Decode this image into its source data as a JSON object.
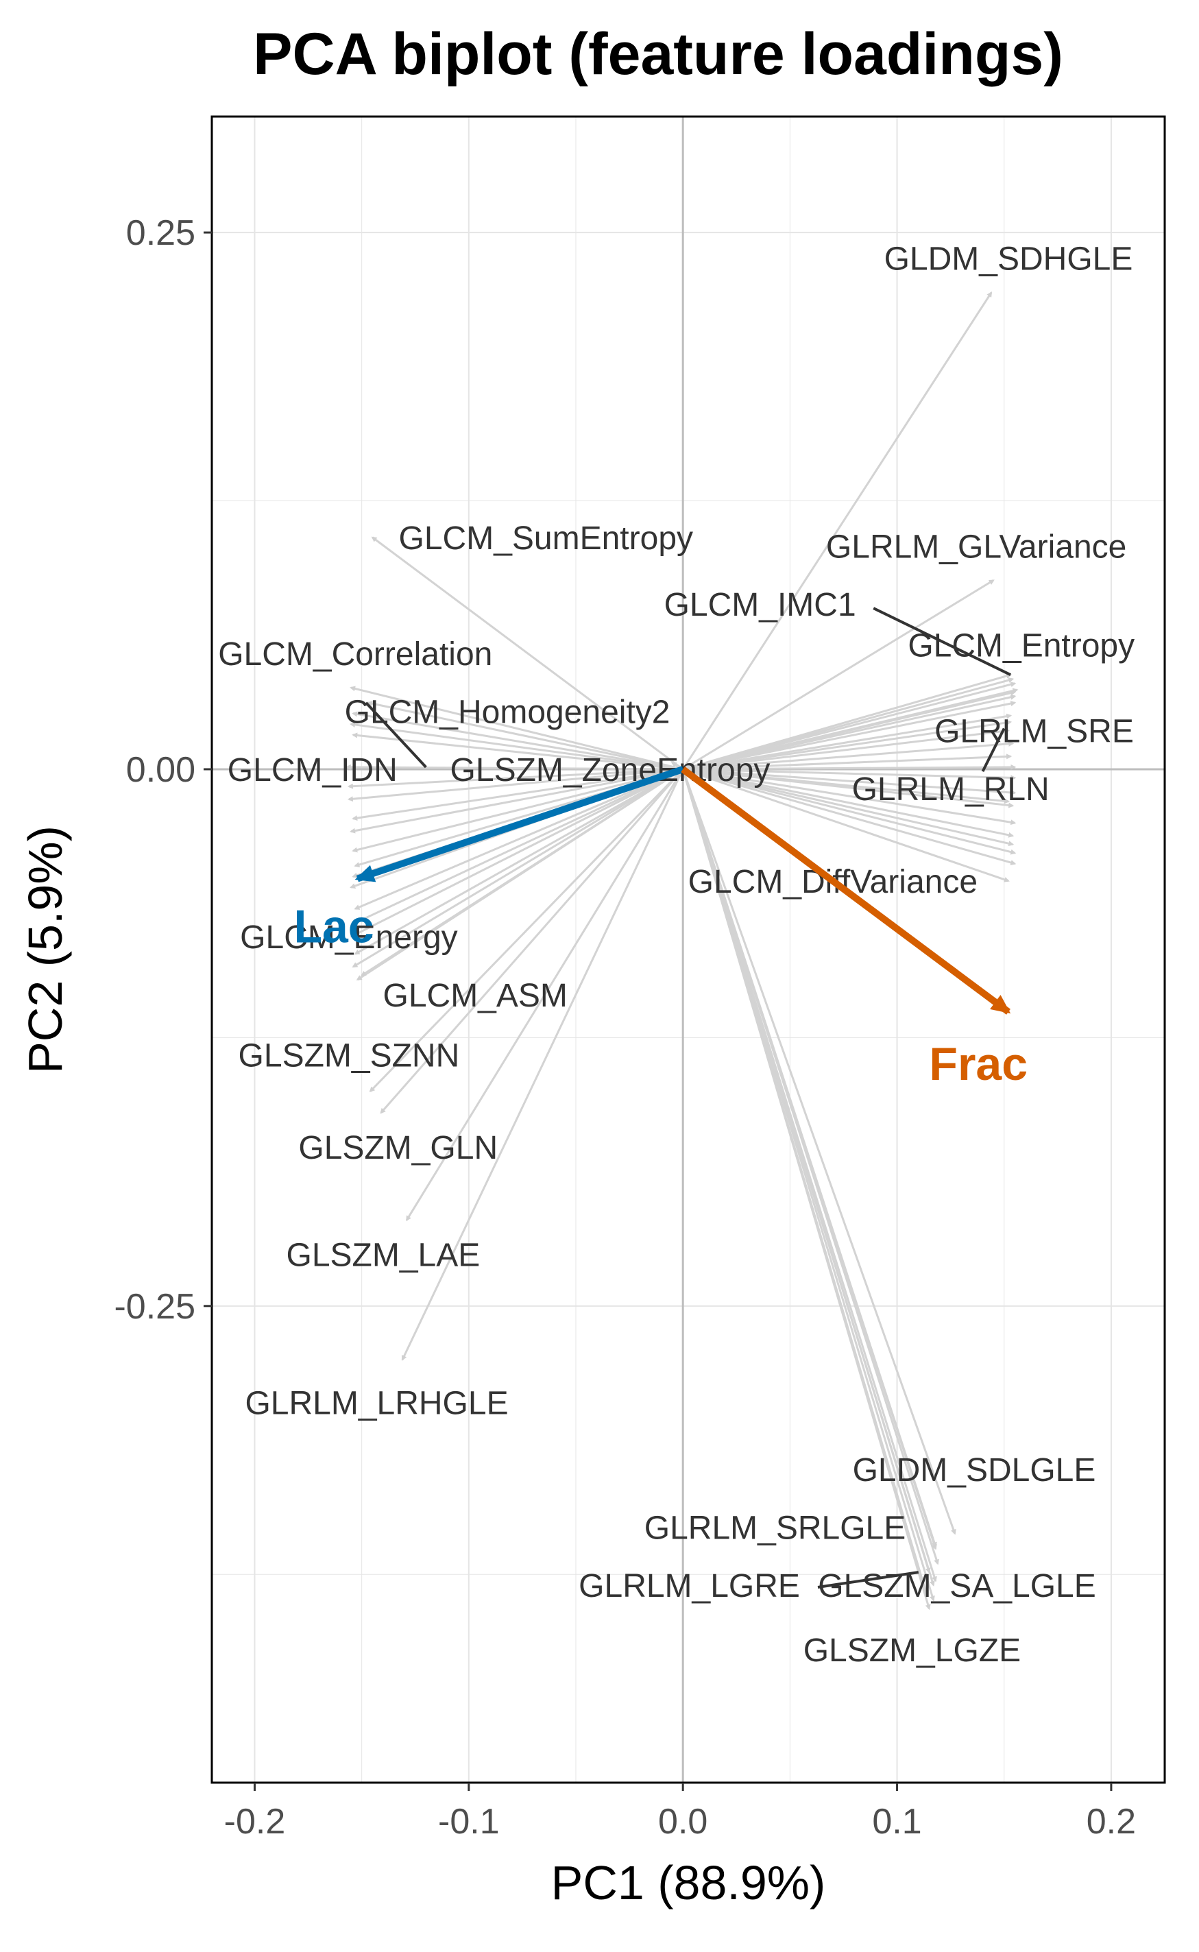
{
  "chart_data": {
    "type": "scatter",
    "subtype": "pca-biplot",
    "title": "PCA biplot (feature loadings)",
    "xlabel": "PC1 (88.9%)",
    "ylabel": "PC2 (5.9%)",
    "xlim": [
      -0.22,
      0.225
    ],
    "ylim": [
      -0.472,
      0.304
    ],
    "xticks": [
      -0.2,
      -0.1,
      0.0,
      0.1,
      0.2
    ],
    "xtick_labels": [
      "-0.2",
      "-0.1",
      "0.0",
      "0.1",
      "0.2"
    ],
    "yticks": [
      -0.25,
      0.0,
      0.25
    ],
    "ytick_labels": [
      "-0.25",
      "0.00",
      "0.25"
    ],
    "grid": true,
    "colors": {
      "arrow": "#d3d3d3",
      "leader": "#333333",
      "lac": "#0072B2",
      "frac": "#D55E00",
      "zero_line": "#bdbdbd",
      "grid": "#e5e5e5",
      "label": "#333333"
    },
    "labeled_features": [
      {
        "name": "GLDM_SDHGLE",
        "x": 0.144,
        "y": 0.222,
        "label_x": 0.152,
        "label_y": 0.238
      },
      {
        "name": "GLCM_SumEntropy",
        "x": -0.145,
        "y": 0.108,
        "label_x": -0.064,
        "label_y": 0.108
      },
      {
        "name": "GLRLM_GLVariance",
        "x": 0.145,
        "y": 0.088,
        "label_x": 0.137,
        "label_y": 0.104
      },
      {
        "name": "GLCM_IMC1",
        "x": 0.153,
        "y": 0.044,
        "label_x": 0.036,
        "label_y": 0.077
      },
      {
        "name": "GLCM_Correlation",
        "x": -0.155,
        "y": 0.038,
        "label_x": -0.153,
        "label_y": 0.054
      },
      {
        "name": "GLCM_Entropy",
        "x": 0.155,
        "y": 0.036,
        "label_x": 0.158,
        "label_y": 0.058
      },
      {
        "name": "GLCM_Homogeneity2",
        "x": -0.147,
        "y": 0.031,
        "label_x": -0.082,
        "label_y": 0.027
      },
      {
        "name": "GLRLM_SRE",
        "x": 0.153,
        "y": 0.025,
        "label_x": 0.164,
        "label_y": 0.018
      },
      {
        "name": "GLCM_IDN",
        "x": -0.157,
        "y": 0.001,
        "label_x": -0.173,
        "label_y": 0.0
      },
      {
        "name": "GLSZM_ZoneEntropy",
        "x": -0.005,
        "y": 0.003,
        "label_x": -0.034,
        "label_y": 0.0
      },
      {
        "name": "GLRLM_RLN",
        "x": 0.152,
        "y": -0.015,
        "label_x": 0.125,
        "label_y": -0.009
      },
      {
        "name": "GLCM_DiffVariance",
        "x": 0.152,
        "y": -0.052,
        "label_x": 0.07,
        "label_y": -0.052
      },
      {
        "name": "GLCM_Energy",
        "x": -0.155,
        "y": -0.078,
        "label_x": -0.156,
        "label_y": -0.078
      },
      {
        "name": "GLCM_ASM",
        "x": -0.15,
        "y": -0.096,
        "label_x": -0.097,
        "label_y": -0.105
      },
      {
        "name": "GLSZM_SZNN",
        "x": -0.146,
        "y": -0.15,
        "label_x": -0.156,
        "label_y": -0.133
      },
      {
        "name": "GLSZM_GLN",
        "x": -0.141,
        "y": -0.16,
        "label_x": -0.133,
        "label_y": -0.176
      },
      {
        "name": "GLSZM_LAE",
        "x": -0.129,
        "y": -0.21,
        "label_x": -0.14,
        "label_y": -0.226
      },
      {
        "name": "GLRLM_LRHGLE",
        "x": -0.131,
        "y": -0.275,
        "label_x": -0.143,
        "label_y": -0.295
      },
      {
        "name": "GLDM_SDLGLE",
        "x": 0.127,
        "y": -0.356,
        "label_x": 0.136,
        "label_y": -0.326
      },
      {
        "name": "GLRLM_SRLGLE",
        "x": 0.118,
        "y": -0.363,
        "label_x": 0.043,
        "label_y": -0.353
      },
      {
        "name": "GLRLM_LGRE",
        "x": 0.115,
        "y": -0.374,
        "label_x": 0.003,
        "label_y": -0.38
      },
      {
        "name": "GLSZM_SA_LGLE",
        "x": 0.118,
        "y": -0.378,
        "label_x": 0.128,
        "label_y": -0.38
      },
      {
        "name": "GLSZM_LGZE",
        "x": 0.115,
        "y": -0.391,
        "label_x": 0.107,
        "label_y": -0.41
      }
    ],
    "leader_lines": [
      {
        "from": [
          0.089,
          0.075
        ],
        "to": [
          0.153,
          0.044
        ]
      },
      {
        "from": [
          -0.148,
          0.031
        ],
        "to": [
          -0.12,
          0.001
        ]
      },
      {
        "from": [
          0.15,
          0.019
        ],
        "to": [
          0.14,
          -0.001
        ]
      },
      {
        "from": [
          0.063,
          -0.381
        ],
        "to": [
          0.11,
          -0.374
        ]
      }
    ],
    "unlabeled_loadings": [
      [
        0.154,
        0.042
      ],
      [
        0.155,
        0.04
      ],
      [
        0.156,
        0.037
      ],
      [
        0.155,
        0.034
      ],
      [
        0.155,
        0.031
      ],
      [
        0.153,
        0.022
      ],
      [
        0.152,
        0.018
      ],
      [
        0.154,
        0.012
      ],
      [
        0.153,
        0.006
      ],
      [
        0.155,
        0.001
      ],
      [
        0.155,
        -0.004
      ],
      [
        0.155,
        -0.011
      ],
      [
        0.154,
        -0.017
      ],
      [
        0.155,
        -0.025
      ],
      [
        0.154,
        -0.031
      ],
      [
        0.154,
        -0.035
      ],
      [
        0.155,
        -0.039
      ],
      [
        0.155,
        -0.044
      ],
      [
        -0.154,
        0.026
      ],
      [
        -0.155,
        0.021
      ],
      [
        -0.154,
        0.016
      ],
      [
        -0.156,
        -0.008
      ],
      [
        -0.156,
        -0.014
      ],
      [
        -0.154,
        -0.023
      ],
      [
        -0.155,
        -0.029
      ],
      [
        -0.154,
        -0.038
      ],
      [
        -0.153,
        -0.045
      ],
      [
        -0.154,
        -0.05
      ],
      [
        -0.155,
        -0.055
      ],
      [
        -0.153,
        -0.065
      ],
      [
        -0.154,
        -0.072
      ],
      [
        -0.153,
        -0.086
      ],
      [
        -0.154,
        -0.092
      ],
      [
        -0.152,
        -0.098
      ],
      [
        0.118,
        -0.362
      ],
      [
        0.119,
        -0.37
      ],
      [
        0.117,
        -0.38
      ],
      [
        0.114,
        -0.385
      ],
      [
        0.117,
        -0.387
      ]
    ],
    "groups": [
      {
        "name": "Lac",
        "x": -0.152,
        "y": -0.051,
        "label_x": -0.163,
        "label_y": -0.073
      },
      {
        "name": "Frac",
        "x": 0.152,
        "y": -0.113,
        "label_x": 0.138,
        "label_y": -0.137
      }
    ]
  }
}
